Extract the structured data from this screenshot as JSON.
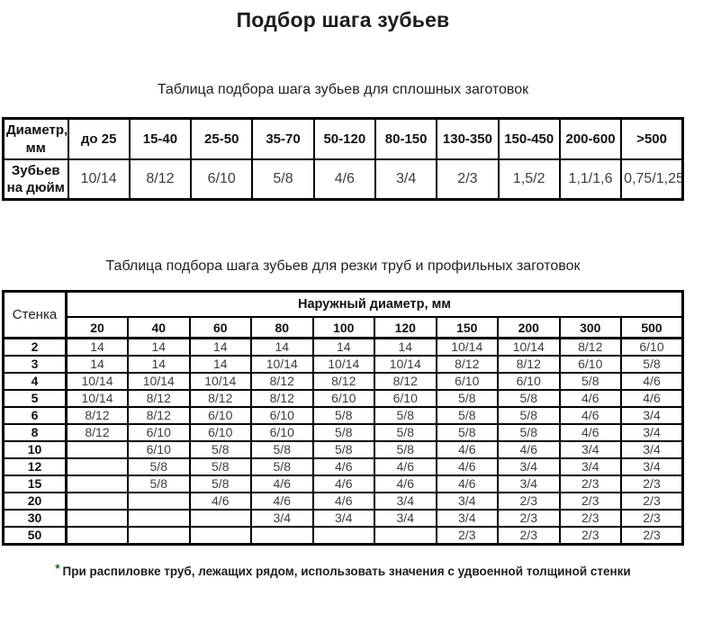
{
  "page": {
    "title": "Подбор шага зубьев",
    "footnote": {
      "star": "*",
      "text": "При распиловке труб, лежащих рядом, использовать значения с удвоенной толщиной стенки"
    }
  },
  "table1": {
    "caption": "Таблица подбора шага зубьев для сплошных заготовок",
    "corner_label": "Диаметр, мм",
    "row_label": "Зубьев на дюйм",
    "columns": [
      "до 25",
      "15-40",
      "25-50",
      "35-70",
      "50-120",
      "80-150",
      "130-350",
      "150-450",
      "200-600",
      ">500"
    ],
    "values": [
      "10/14",
      "8/12",
      "6/10",
      "5/8",
      "4/6",
      "3/4",
      "2/3",
      "1,5/2",
      "1,1/1,6",
      "0,75/1,25"
    ]
  },
  "table2": {
    "caption": "Таблица подбора шага зубьев для резки труб и профильных заготовок",
    "corner_label": "Стенка",
    "group_header": "Наружный диаметр, мм",
    "columns": [
      "20",
      "40",
      "60",
      "80",
      "100",
      "120",
      "150",
      "200",
      "300",
      "500"
    ],
    "rows": [
      {
        "wall": "2",
        "values": [
          "14",
          "14",
          "14",
          "14",
          "14",
          "14",
          "10/14",
          "10/14",
          "8/12",
          "6/10"
        ]
      },
      {
        "wall": "3",
        "values": [
          "14",
          "14",
          "14",
          "10/14",
          "10/14",
          "10/14",
          "8/12",
          "8/12",
          "6/10",
          "5/8"
        ]
      },
      {
        "wall": "4",
        "values": [
          "10/14",
          "10/14",
          "10/14",
          "8/12",
          "8/12",
          "8/12",
          "6/10",
          "6/10",
          "5/8",
          "4/6"
        ]
      },
      {
        "wall": "5",
        "values": [
          "10/14",
          "8/12",
          "8/12",
          "8/12",
          "6/10",
          "6/10",
          "5/8",
          "5/8",
          "4/6",
          "4/6"
        ]
      },
      {
        "wall": "6",
        "values": [
          "8/12",
          "8/12",
          "6/10",
          "6/10",
          "5/8",
          "5/8",
          "5/8",
          "5/8",
          "4/6",
          "3/4"
        ]
      },
      {
        "wall": "8",
        "values": [
          "8/12",
          "6/10",
          "6/10",
          "6/10",
          "5/8",
          "5/8",
          "5/8",
          "5/8",
          "4/6",
          "3/4"
        ]
      },
      {
        "wall": "10",
        "values": [
          "",
          "6/10",
          "5/8",
          "5/8",
          "5/8",
          "5/8",
          "4/6",
          "4/6",
          "3/4",
          "3/4"
        ]
      },
      {
        "wall": "12",
        "values": [
          "",
          "5/8",
          "5/8",
          "5/8",
          "4/6",
          "4/6",
          "4/6",
          "3/4",
          "3/4",
          "3/4"
        ]
      },
      {
        "wall": "15",
        "values": [
          "",
          "5/8",
          "5/8",
          "4/6",
          "4/6",
          "4/6",
          "4/6",
          "3/4",
          "2/3",
          "2/3"
        ]
      },
      {
        "wall": "20",
        "values": [
          "",
          "",
          "4/6",
          "4/6",
          "4/6",
          "3/4",
          "3/4",
          "2/3",
          "2/3",
          "2/3"
        ]
      },
      {
        "wall": "30",
        "values": [
          "",
          "",
          "",
          "3/4",
          "3/4",
          "3/4",
          "3/4",
          "2/3",
          "2/3",
          "2/3"
        ]
      },
      {
        "wall": "50",
        "values": [
          "",
          "",
          "",
          "",
          "",
          "",
          "2/3",
          "2/3",
          "2/3",
          "2/3"
        ]
      }
    ]
  }
}
